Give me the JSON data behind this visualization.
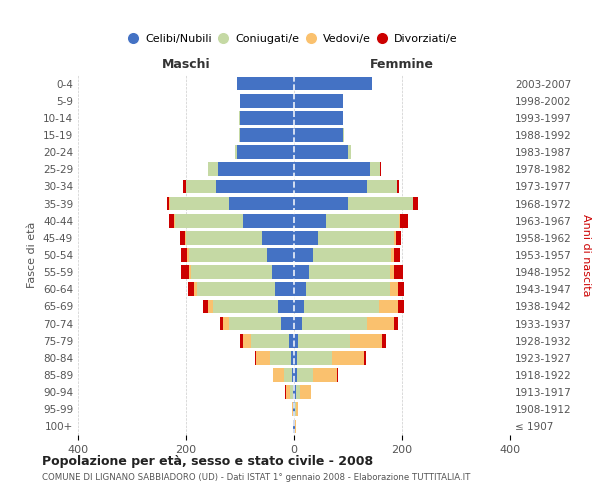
{
  "age_groups": [
    "100+",
    "95-99",
    "90-94",
    "85-89",
    "80-84",
    "75-79",
    "70-74",
    "65-69",
    "60-64",
    "55-59",
    "50-54",
    "45-49",
    "40-44",
    "35-39",
    "30-34",
    "25-29",
    "20-24",
    "15-19",
    "10-14",
    "5-9",
    "0-4"
  ],
  "birth_years": [
    "≤ 1907",
    "1908-1912",
    "1913-1917",
    "1918-1922",
    "1923-1927",
    "1928-1932",
    "1933-1937",
    "1938-1942",
    "1943-1947",
    "1948-1952",
    "1953-1957",
    "1958-1962",
    "1963-1967",
    "1968-1972",
    "1973-1977",
    "1978-1982",
    "1983-1987",
    "1988-1992",
    "1993-1997",
    "1998-2002",
    "2003-2007"
  ],
  "colors": {
    "celibi": "#4472c4",
    "coniugati": "#c5d9a4",
    "vedovi": "#fac16e",
    "divorziati": "#cc0000"
  },
  "maschi": {
    "celibi": [
      1,
      1,
      2,
      3,
      5,
      10,
      25,
      30,
      35,
      40,
      50,
      60,
      95,
      120,
      145,
      140,
      105,
      100,
      100,
      100,
      105
    ],
    "coniugati": [
      0,
      1,
      5,
      15,
      40,
      70,
      95,
      120,
      145,
      150,
      145,
      140,
      125,
      110,
      55,
      20,
      5,
      2,
      1,
      0,
      0
    ],
    "vedovi": [
      1,
      2,
      8,
      20,
      25,
      15,
      12,
      10,
      5,
      5,
      3,
      2,
      2,
      1,
      0,
      0,
      0,
      0,
      0,
      0,
      0
    ],
    "divorziati": [
      0,
      0,
      1,
      1,
      2,
      5,
      5,
      8,
      12,
      15,
      12,
      10,
      10,
      5,
      5,
      0,
      0,
      0,
      0,
      0,
      0
    ]
  },
  "femmine": {
    "celibi": [
      1,
      1,
      3,
      5,
      5,
      8,
      15,
      18,
      22,
      28,
      35,
      45,
      60,
      100,
      135,
      140,
      100,
      90,
      90,
      90,
      145
    ],
    "coniugati": [
      0,
      2,
      8,
      30,
      65,
      95,
      120,
      140,
      155,
      150,
      145,
      140,
      135,
      120,
      55,
      20,
      5,
      2,
      1,
      0,
      0
    ],
    "vedovi": [
      2,
      5,
      20,
      45,
      60,
      60,
      50,
      35,
      15,
      8,
      5,
      3,
      2,
      1,
      0,
      0,
      0,
      0,
      0,
      0,
      0
    ],
    "divorziati": [
      0,
      0,
      1,
      2,
      3,
      8,
      8,
      10,
      12,
      15,
      12,
      10,
      15,
      8,
      5,
      2,
      0,
      0,
      0,
      0,
      0
    ]
  },
  "xlim": 400,
  "title": "Popolazione per età, sesso e stato civile - 2008",
  "subtitle": "COMUNE DI LIGNANO SABBIADORO (UD) - Dati ISTAT 1° gennaio 2008 - Elaborazione TUTTITALIA.IT",
  "ylabel_left": "Fasce di età",
  "ylabel_right": "Anni di nascita",
  "xlabel_left": "Maschi",
  "xlabel_right": "Femmine",
  "legend_labels": [
    "Celibi/Nubili",
    "Coniugati/e",
    "Vedovi/e",
    "Divorziati/e"
  ],
  "background_color": "#ffffff"
}
